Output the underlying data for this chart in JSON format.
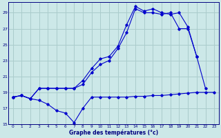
{
  "xlabel": "Graphe des températures (°c)",
  "bg_color": "#cce8e8",
  "grid_color": "#aacccc",
  "line_color": "#0000cc",
  "xlim": [
    -0.5,
    23.5
  ],
  "ylim": [
    15,
    30
  ],
  "yticks": [
    15,
    17,
    19,
    21,
    23,
    25,
    27,
    29
  ],
  "xticks": [
    0,
    1,
    2,
    3,
    4,
    5,
    6,
    7,
    8,
    9,
    10,
    11,
    12,
    13,
    14,
    15,
    16,
    17,
    18,
    19,
    20,
    21,
    22,
    23
  ],
  "series1_x": [
    0,
    1,
    2,
    3,
    4,
    5,
    6,
    7,
    8,
    9,
    10,
    11,
    12,
    13,
    14,
    15,
    16,
    17,
    18,
    19,
    20,
    21,
    22,
    23
  ],
  "series1_y": [
    18.4,
    18.6,
    18.2,
    18.0,
    17.5,
    16.7,
    16.4,
    15.2,
    17.0,
    18.4,
    18.4,
    18.4,
    18.4,
    18.4,
    18.5,
    18.5,
    18.6,
    18.6,
    18.7,
    18.8,
    18.9,
    19.0,
    19.0,
    19.0
  ],
  "series2_x": [
    0,
    1,
    2,
    3,
    4,
    5,
    6,
    7,
    8,
    9,
    10,
    11,
    12,
    13,
    14,
    15,
    16,
    17,
    18,
    19,
    20,
    21
  ],
  "series2_y": [
    18.4,
    18.6,
    18.2,
    19.5,
    19.5,
    19.5,
    19.5,
    19.5,
    20.5,
    22.0,
    23.2,
    23.5,
    24.8,
    27.5,
    29.8,
    29.2,
    29.5,
    29.0,
    28.8,
    29.0,
    27.2,
    23.5
  ],
  "series3_x": [
    0,
    1,
    2,
    3,
    4,
    5,
    6,
    7,
    8,
    9,
    10,
    11,
    12,
    13,
    14,
    15,
    16,
    17,
    18,
    19,
    20,
    21,
    22
  ],
  "series3_y": [
    18.4,
    18.6,
    18.2,
    19.5,
    19.5,
    19.5,
    19.5,
    19.5,
    20.0,
    21.5,
    22.5,
    23.0,
    24.5,
    26.5,
    29.5,
    29.0,
    29.0,
    28.8,
    29.0,
    27.0,
    27.0,
    23.5,
    19.5
  ]
}
